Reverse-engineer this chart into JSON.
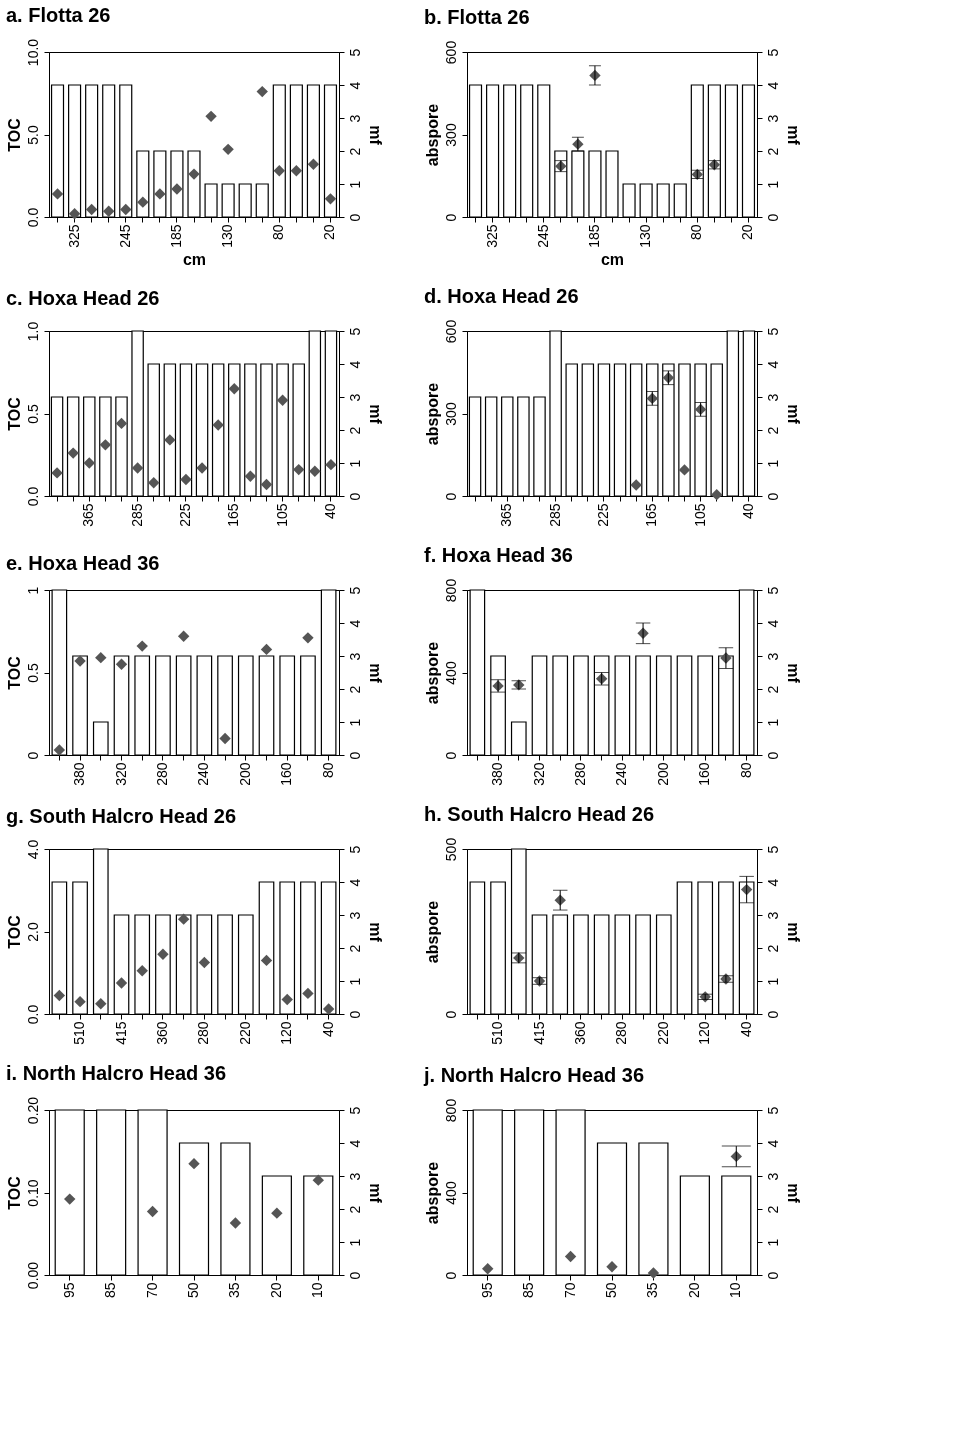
{
  "chart_data": [
    {
      "type": "bar",
      "title": "a. Flotta 26",
      "xlabel": "cm",
      "ylabel": "TOC",
      "y2label": "mf",
      "categories": [
        null,
        "325",
        null,
        null,
        "245",
        null,
        null,
        "185",
        null,
        null,
        "130",
        null,
        null,
        "80",
        null,
        null,
        "20"
      ],
      "series": [
        {
          "type": "bar",
          "axis": "y2",
          "color": "#ffffff",
          "values": [
            4,
            4,
            4,
            4,
            4,
            2,
            2,
            2,
            2,
            1,
            1,
            1,
            1,
            4,
            4,
            4,
            4
          ]
        },
        {
          "type": "scatter",
          "marker": "diamond",
          "color": "#555555",
          "values": [
            1.4,
            0.2,
            0.45,
            0.35,
            0.45,
            0.9,
            1.4,
            1.7,
            2.6,
            6.1,
            4.1,
            null,
            7.6,
            2.8,
            2.8,
            3.2,
            1.1
          ]
        }
      ],
      "ylim": [
        0,
        10
      ],
      "yticks": [
        {
          "value": 0,
          "label": "0.0"
        },
        {
          "value": 5,
          "label": "5.0"
        },
        {
          "value": 10,
          "label": "10.0"
        }
      ],
      "y2lim": [
        0,
        5
      ],
      "y2ticks": [
        0,
        1,
        2,
        3,
        4,
        5
      ],
      "grid": false
    },
    {
      "type": "bar",
      "title": "b. Flotta 26",
      "xlabel": "cm",
      "ylabel": "abspore",
      "y2label": "mf",
      "categories": [
        null,
        "325",
        null,
        null,
        "245",
        null,
        null,
        "185",
        null,
        null,
        "130",
        null,
        null,
        "80",
        null,
        null,
        "20"
      ],
      "series": [
        {
          "type": "bar",
          "axis": "y2",
          "color": "#ffffff",
          "values": [
            4,
            4,
            4,
            4,
            4,
            2,
            2,
            2,
            2,
            1,
            1,
            1,
            1,
            4,
            4,
            4,
            4
          ]
        },
        {
          "type": "scatter",
          "marker": "diamond",
          "color": "#555555",
          "values": [
            null,
            null,
            null,
            null,
            null,
            185,
            265,
            515,
            null,
            null,
            null,
            null,
            null,
            155,
            190,
            null,
            null
          ],
          "errors": [
            null,
            null,
            null,
            null,
            null,
            20,
            25,
            35,
            null,
            null,
            null,
            null,
            null,
            15,
            15,
            null,
            null
          ]
        }
      ],
      "ylim": [
        0,
        600
      ],
      "yticks": [
        0,
        300,
        600
      ],
      "y2lim": [
        0,
        5
      ],
      "y2ticks": [
        0,
        1,
        2,
        3,
        4,
        5
      ],
      "grid": false
    },
    {
      "type": "bar",
      "title": "c. Hoxa Head 26",
      "ylabel": "TOC",
      "y2label": "mf",
      "categories": [
        null,
        null,
        "365",
        null,
        null,
        "285",
        null,
        null,
        "225",
        null,
        null,
        "165",
        null,
        null,
        "105",
        null,
        null,
        "40"
      ],
      "series": [
        {
          "type": "bar",
          "axis": "y2",
          "color": "#ffffff",
          "values": [
            3,
            3,
            3,
            3,
            3,
            5,
            4,
            4,
            4,
            4,
            4,
            4,
            4,
            4,
            4,
            4,
            5,
            5
          ]
        },
        {
          "type": "scatter",
          "marker": "diamond",
          "color": "#555555",
          "values": [
            0.14,
            0.26,
            0.2,
            0.31,
            0.44,
            0.17,
            0.08,
            0.34,
            0.1,
            0.17,
            0.43,
            0.65,
            0.12,
            0.07,
            0.58,
            0.16,
            0.15,
            0.19
          ]
        }
      ],
      "ylim": [
        0,
        1
      ],
      "yticks": [
        {
          "value": 0,
          "label": "0.0"
        },
        {
          "value": 0.5,
          "label": "0.5"
        },
        {
          "value": 1,
          "label": "1.0"
        }
      ],
      "y2lim": [
        0,
        5
      ],
      "y2ticks": [
        0,
        1,
        2,
        3,
        4,
        5
      ],
      "grid": false
    },
    {
      "type": "bar",
      "title": "d. Hoxa Head 26",
      "ylabel": "abspore",
      "y2label": "mf",
      "categories": [
        null,
        null,
        "365",
        null,
        null,
        "285",
        null,
        null,
        "225",
        null,
        null,
        "165",
        null,
        null,
        "105",
        null,
        null,
        "40"
      ],
      "series": [
        {
          "type": "bar",
          "axis": "y2",
          "color": "#ffffff",
          "values": [
            3,
            3,
            3,
            3,
            3,
            5,
            4,
            4,
            4,
            4,
            4,
            4,
            4,
            4,
            4,
            4,
            5,
            5
          ]
        },
        {
          "type": "scatter",
          "marker": "diamond",
          "color": "#555555",
          "values": [
            null,
            null,
            null,
            null,
            null,
            null,
            null,
            null,
            null,
            null,
            40,
            355,
            430,
            95,
            315,
            5,
            null,
            null
          ],
          "errors": [
            null,
            null,
            null,
            null,
            null,
            null,
            null,
            null,
            null,
            null,
            null,
            25,
            25,
            null,
            25,
            null,
            null,
            null
          ]
        }
      ],
      "ylim": [
        0,
        600
      ],
      "yticks": [
        0,
        300,
        600
      ],
      "y2lim": [
        0,
        5
      ],
      "y2ticks": [
        0,
        1,
        2,
        3,
        4,
        5
      ],
      "grid": false
    },
    {
      "type": "bar",
      "title": "e. Hoxa Head 36",
      "ylabel": "TOC",
      "y2label": "mf",
      "categories": [
        null,
        "380",
        null,
        "320",
        null,
        "280",
        null,
        "240",
        null,
        "200",
        null,
        "160",
        null,
        "80"
      ],
      "series": [
        {
          "type": "bar",
          "axis": "y2",
          "color": "#ffffff",
          "values": [
            5,
            3,
            1,
            3,
            3,
            3,
            3,
            3,
            3,
            3,
            3,
            3,
            3,
            5
          ]
        },
        {
          "type": "scatter",
          "marker": "diamond",
          "color": "#555555",
          "values": [
            0.03,
            0.57,
            0.59,
            0.55,
            0.66,
            null,
            0.72,
            null,
            0.1,
            null,
            0.64,
            null,
            0.71,
            null
          ]
        }
      ],
      "ylim": [
        0,
        1
      ],
      "yticks": [
        {
          "value": 0,
          "label": "0"
        },
        {
          "value": 0.5,
          "label": "0.5"
        },
        {
          "value": 1,
          "label": "1"
        }
      ],
      "y2lim": [
        0,
        5
      ],
      "y2ticks": [
        0,
        1,
        2,
        3,
        4,
        5
      ],
      "grid": false
    },
    {
      "type": "bar",
      "title": "f. Hoxa Head 36",
      "ylabel": "abspore",
      "y2label": "mf",
      "categories": [
        null,
        "380",
        null,
        "320",
        null,
        "280",
        null,
        "240",
        null,
        "200",
        null,
        "160",
        null,
        "80"
      ],
      "series": [
        {
          "type": "bar",
          "axis": "y2",
          "color": "#ffffff",
          "values": [
            5,
            3,
            1,
            3,
            3,
            3,
            3,
            3,
            3,
            3,
            3,
            3,
            3,
            5
          ]
        },
        {
          "type": "scatter",
          "marker": "diamond",
          "color": "#555555",
          "values": [
            null,
            335,
            340,
            null,
            null,
            null,
            370,
            null,
            590,
            null,
            null,
            null,
            470,
            null
          ],
          "errors": [
            null,
            30,
            20,
            null,
            null,
            null,
            30,
            null,
            50,
            null,
            null,
            null,
            50,
            null
          ]
        }
      ],
      "ylim": [
        0,
        800
      ],
      "yticks": [
        0,
        400,
        800
      ],
      "y2lim": [
        0,
        5
      ],
      "y2ticks": [
        0,
        1,
        2,
        3,
        4,
        5
      ],
      "grid": false
    },
    {
      "type": "bar",
      "title": "g. South Halcro Head 26",
      "ylabel": "TOC",
      "y2label": "mf",
      "categories": [
        null,
        "510",
        null,
        "415",
        null,
        "360",
        null,
        "280",
        null,
        "220",
        null,
        "120",
        null,
        "40"
      ],
      "series": [
        {
          "type": "bar",
          "axis": "y2",
          "color": "#ffffff",
          "values": [
            4,
            4,
            5,
            3,
            3,
            3,
            3,
            3,
            3,
            3,
            4,
            4,
            4,
            4
          ]
        },
        {
          "type": "scatter",
          "marker": "diamond",
          "color": "#555555",
          "values": [
            0.45,
            0.3,
            0.25,
            0.75,
            1.05,
            1.45,
            2.3,
            1.25,
            null,
            null,
            1.3,
            0.35,
            0.5,
            0.12
          ]
        }
      ],
      "ylim": [
        0,
        4
      ],
      "yticks": [
        {
          "value": 0,
          "label": "0.0"
        },
        {
          "value": 2,
          "label": "2.0"
        },
        {
          "value": 4,
          "label": "4.0"
        }
      ],
      "y2lim": [
        0,
        5
      ],
      "y2ticks": [
        0,
        1,
        2,
        3,
        4,
        5
      ],
      "grid": false
    },
    {
      "type": "bar",
      "title": "h. South Halcro Head 26",
      "ylabel": "abspore",
      "y2label": "mf",
      "categories": [
        null,
        "510",
        null,
        "415",
        null,
        "360",
        null,
        "280",
        null,
        "220",
        null,
        "120",
        null,
        "40"
      ],
      "series": [
        {
          "type": "bar",
          "axis": "y2",
          "color": "#ffffff",
          "values": [
            4,
            4,
            5,
            3,
            3,
            3,
            3,
            3,
            3,
            3,
            4,
            4,
            4,
            4
          ]
        },
        {
          "type": "scatter",
          "marker": "diamond",
          "color": "#555555",
          "values": [
            null,
            null,
            170,
            100,
            345,
            null,
            null,
            null,
            null,
            null,
            null,
            52,
            106,
            377
          ],
          "errors": [
            null,
            null,
            15,
            10,
            30,
            null,
            null,
            null,
            null,
            null,
            null,
            8,
            10,
            40
          ]
        }
      ],
      "ylim": [
        0,
        500
      ],
      "yticks": [
        0,
        500
      ],
      "y2lim": [
        0,
        5
      ],
      "y2ticks": [
        0,
        1,
        2,
        3,
        4,
        5
      ],
      "grid": false
    },
    {
      "type": "bar",
      "title": "i. North Halcro Head 36",
      "ylabel": "TOC",
      "y2label": "mf",
      "categories": [
        "95",
        "85",
        "70",
        "50",
        "35",
        "20",
        "10"
      ],
      "series": [
        {
          "type": "bar",
          "axis": "y2",
          "color": "#ffffff",
          "values": [
            5,
            5,
            5,
            4,
            4,
            3,
            3
          ]
        },
        {
          "type": "scatter",
          "marker": "diamond",
          "color": "#555555",
          "values": [
            0.092,
            null,
            0.077,
            0.135,
            0.063,
            0.075,
            0.115
          ]
        }
      ],
      "ylim": [
        0,
        0.2
      ],
      "yticks": [
        {
          "value": 0,
          "label": "0.00"
        },
        {
          "value": 0.1,
          "label": "0.10"
        },
        {
          "value": 0.2,
          "label": "0.20"
        }
      ],
      "y2lim": [
        0,
        5
      ],
      "y2ticks": [
        0,
        1,
        2,
        3,
        4,
        5
      ],
      "grid": false
    },
    {
      "type": "bar",
      "title": "j. North Halcro Head 36",
      "ylabel": "abspore",
      "y2label": "mf",
      "categories": [
        "95",
        "85",
        "70",
        "50",
        "35",
        "20",
        "10"
      ],
      "series": [
        {
          "type": "bar",
          "axis": "y2",
          "color": "#ffffff",
          "values": [
            5,
            5,
            5,
            4,
            4,
            3,
            3
          ]
        },
        {
          "type": "scatter",
          "marker": "diamond",
          "color": "#555555",
          "values": [
            30,
            null,
            90,
            40,
            10,
            null,
            575
          ],
          "errors": [
            null,
            null,
            null,
            null,
            null,
            null,
            50
          ]
        }
      ],
      "ylim": [
        0,
        800
      ],
      "yticks": [
        0,
        400,
        800
      ],
      "y2lim": [
        0,
        5
      ],
      "y2ticks": [
        0,
        1,
        2,
        3,
        4,
        5
      ],
      "grid": false
    }
  ]
}
